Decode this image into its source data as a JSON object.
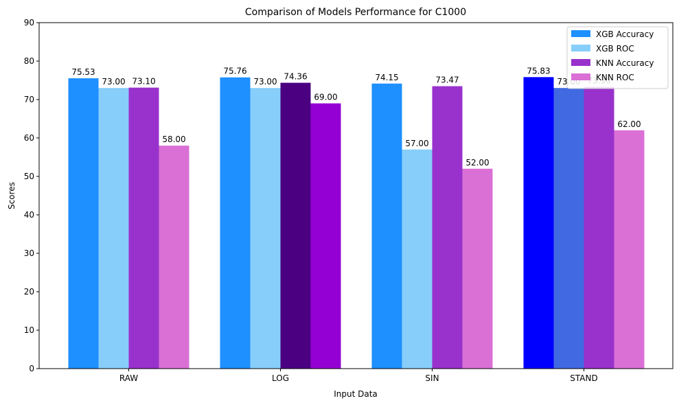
{
  "chart_data": {
    "type": "bar",
    "title": "Comparison of Models Performance for C1000",
    "xlabel": "Input Data",
    "ylabel": "Scores",
    "ylim": [
      0,
      90
    ],
    "yticks": [
      0,
      10,
      20,
      30,
      40,
      50,
      60,
      70,
      80,
      90
    ],
    "grid": false,
    "legend_position": "top-right",
    "categories": [
      "RAW",
      "LOG",
      "SIN",
      "STAND"
    ],
    "series": [
      {
        "name": "XGB Accuracy",
        "legend_color": "#1E90FF",
        "values": [
          75.53,
          75.76,
          74.15,
          75.83
        ],
        "labels": [
          "75.53",
          "75.76",
          "74.15",
          "75.83"
        ],
        "colors": [
          "#1E90FF",
          "#1E90FF",
          "#1E90FF",
          "#0000FF"
        ]
      },
      {
        "name": "XGB ROC",
        "legend_color": "#87CEFA",
        "values": [
          73.0,
          73.0,
          57.0,
          73.0
        ],
        "labels": [
          "73.00",
          "73.00",
          "57.00",
          "73.00"
        ],
        "colors": [
          "#87CEFA",
          "#87CEFA",
          "#87CEFA",
          "#4169E1"
        ]
      },
      {
        "name": "KNN Accuracy",
        "legend_color": "#9932CC",
        "values": [
          73.1,
          74.36,
          73.47,
          73.3
        ],
        "labels": [
          "73.10",
          "74.36",
          "73.47",
          "73.30"
        ],
        "colors": [
          "#9932CC",
          "#4B0082",
          "#9932CC",
          "#9932CC"
        ]
      },
      {
        "name": "KNN ROC",
        "legend_color": "#DA70D6",
        "values": [
          58.0,
          69.0,
          52.0,
          62.0
        ],
        "labels": [
          "58.00",
          "69.00",
          "52.00",
          "62.00"
        ],
        "colors": [
          "#DA70D6",
          "#9400D3",
          "#DA70D6",
          "#DA70D6"
        ]
      }
    ]
  }
}
